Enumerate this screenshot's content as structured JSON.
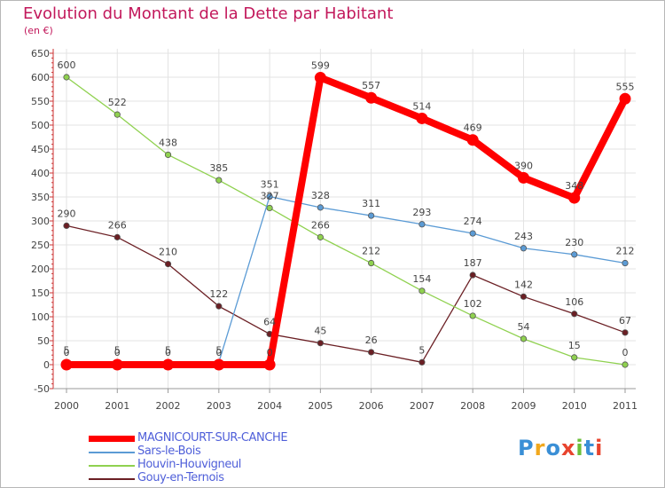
{
  "chart_data": {
    "type": "line",
    "title": "Evolution du Montant de la Dette par Habitant",
    "subtitle": "(en €)",
    "x": [
      "2000",
      "2001",
      "2002",
      "2003",
      "2004",
      "2005",
      "2006",
      "2007",
      "2008",
      "2009",
      "2010",
      "2011"
    ],
    "ylim": [
      -50,
      650
    ],
    "yticks": [
      -50,
      0,
      50,
      100,
      150,
      200,
      250,
      300,
      350,
      400,
      450,
      500,
      550,
      600,
      650
    ],
    "grid": true,
    "legend_position": "bottom-left",
    "series": [
      {
        "name": "Gouy-en-Ternois",
        "color": "#6b1f24",
        "values": [
          290,
          266,
          210,
          122,
          64,
          45,
          26,
          5,
          187,
          142,
          106,
          67
        ]
      },
      {
        "name": "Houvin-Houvigneul",
        "color": "#8fd14f",
        "values": [
          600,
          522,
          438,
          385,
          327,
          266,
          212,
          154,
          102,
          54,
          15,
          0
        ]
      },
      {
        "name": "Sars-le-Bois",
        "color": "#5b9bd5",
        "values": [
          5,
          5,
          5,
          5,
          351,
          328,
          311,
          293,
          274,
          243,
          230,
          212
        ]
      },
      {
        "name": "MAGNICOURT-SUR-CANCHE",
        "color": "#ff0000",
        "values": [
          0,
          0,
          0,
          0,
          0,
          599,
          557,
          514,
          469,
          390,
          348,
          555
        ]
      }
    ],
    "legend_order": [
      "MAGNICOURT-SUR-CANCHE",
      "Sars-le-Bois",
      "Houvin-Houvigneul",
      "Gouy-en-Ternois"
    ]
  },
  "brand": {
    "letters": [
      "P",
      "r",
      "o",
      "x",
      "i",
      "t",
      "i"
    ],
    "colors": [
      "#3a8fd6",
      "#f2a81d",
      "#3a8fd6",
      "#e8442e",
      "#6cbf3a",
      "#3a8fd6",
      "#e8442e"
    ]
  }
}
